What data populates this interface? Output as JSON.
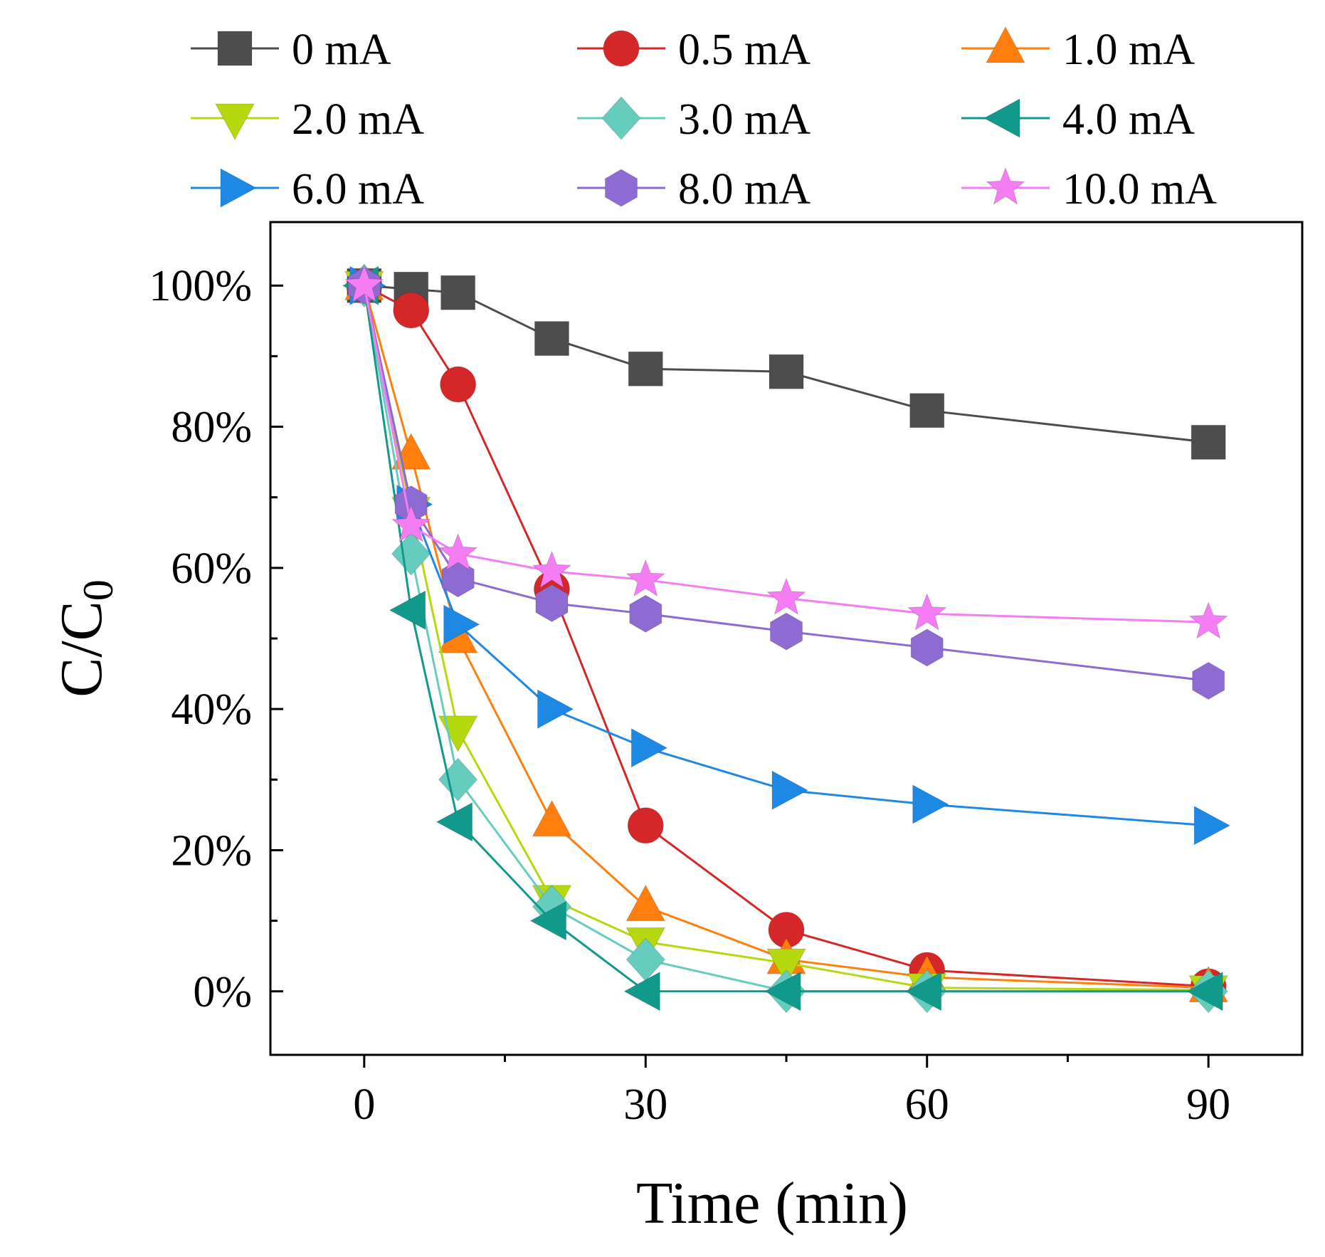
{
  "chart_data": {
    "type": "line",
    "title": "",
    "xlabel": "Time (min)",
    "ylabel": {
      "base": "C/C",
      "subscript": "0"
    },
    "xlim": [
      -10,
      100
    ],
    "ylim": [
      -0.09,
      1.09
    ],
    "x_ticks": [
      0,
      30,
      60,
      90
    ],
    "x_tick_labels": [
      "0",
      "30",
      "60",
      "90"
    ],
    "y_ticks": [
      0,
      0.2,
      0.4,
      0.6,
      0.8,
      1.0
    ],
    "y_tick_labels": [
      "0%",
      "20%",
      "40%",
      "60%",
      "80%",
      "100%"
    ],
    "grid": false,
    "legend_position": "top",
    "x": [
      0,
      5,
      10,
      20,
      30,
      45,
      60,
      90
    ],
    "series": [
      {
        "name": "0 mA",
        "color": "#4d4d4d",
        "marker": "square",
        "values": [
          1.0,
          0.995,
          0.99,
          0.925,
          0.882,
          0.878,
          0.823,
          0.778
        ]
      },
      {
        "name": "0.5 mA",
        "color": "#d62728",
        "marker": "circle",
        "values": [
          1.0,
          0.965,
          0.86,
          0.57,
          0.235,
          0.087,
          0.03,
          0.007
        ]
      },
      {
        "name": "1.0 mA",
        "color": "#ff7f0e",
        "marker": "triangle-up",
        "values": [
          1.0,
          0.76,
          0.5,
          0.24,
          0.12,
          0.045,
          0.02,
          0.005
        ]
      },
      {
        "name": "2.0 mA",
        "color": "#b5d80f",
        "marker": "triangle-down",
        "values": [
          1.0,
          0.68,
          0.37,
          0.13,
          0.07,
          0.04,
          0.005,
          0.002
        ]
      },
      {
        "name": "3.0 mA",
        "color": "#66cdbe",
        "marker": "diamond",
        "values": [
          1.0,
          0.62,
          0.3,
          0.12,
          0.045,
          0.0,
          0.0,
          0.0
        ]
      },
      {
        "name": "4.0 mA",
        "color": "#119a8b",
        "marker": "triangle-left",
        "values": [
          1.0,
          0.54,
          0.24,
          0.1,
          0.0,
          0.0,
          0.0,
          0.0
        ]
      },
      {
        "name": "6.0 mA",
        "color": "#1e88e5",
        "marker": "triangle-right",
        "values": [
          1.0,
          0.69,
          0.52,
          0.4,
          0.345,
          0.285,
          0.265,
          0.235
        ]
      },
      {
        "name": "8.0 mA",
        "color": "#8e6bd3",
        "marker": "hexagon",
        "values": [
          1.0,
          0.69,
          0.585,
          0.55,
          0.535,
          0.51,
          0.487,
          0.44
        ]
      },
      {
        "name": "10.0 mA",
        "color": "#f47df4",
        "marker": "star",
        "values": [
          1.0,
          0.66,
          0.62,
          0.595,
          0.583,
          0.557,
          0.535,
          0.523
        ]
      }
    ]
  }
}
